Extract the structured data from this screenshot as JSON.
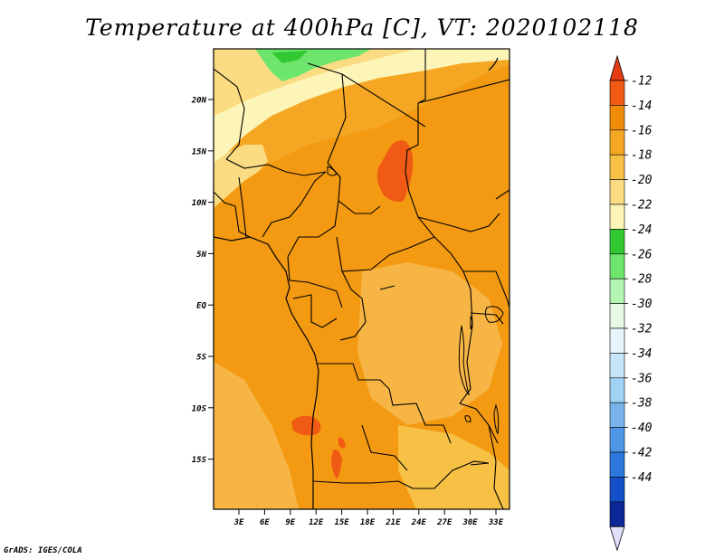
{
  "title": "Temperature at 400hPa [C], VT: 2020102118",
  "footer": "GrADS: IGES/COLA",
  "map": {
    "lat_labels": [
      "20N",
      "15N",
      "10N",
      "5N",
      "EQ",
      "5S",
      "10S",
      "15S"
    ],
    "lon_labels": [
      "3E",
      "6E",
      "9E",
      "12E",
      "15E",
      "18E",
      "21E",
      "24E",
      "27E",
      "30E",
      "33E"
    ]
  },
  "colorbar": {
    "labels": [
      "-12",
      "-14",
      "-16",
      "-18",
      "-20",
      "-22",
      "-24",
      "-26",
      "-28",
      "-30",
      "-32",
      "-34",
      "-36",
      "-38",
      "-40",
      "-42",
      "-44"
    ],
    "colors": [
      "#f05a14",
      "#f08c0a",
      "#f5a623",
      "#f7c145",
      "#fbdc82",
      "#fdf5b8",
      "#32c832",
      "#6ee66e",
      "#b4f5b4",
      "#e6fae6",
      "#e6f5fc",
      "#c8e6fa",
      "#a0d2f5",
      "#78b4eb",
      "#5096e6",
      "#2d78dc",
      "#1450c8",
      "#0a2896"
    ],
    "top_color": "#e63c14",
    "bottom_color": "#e0e0fa"
  }
}
